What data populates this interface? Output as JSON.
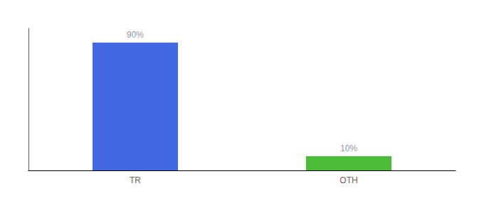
{
  "chart_data": {
    "type": "bar",
    "categories": [
      "TR",
      "OTH"
    ],
    "values": [
      90,
      10
    ],
    "value_labels": [
      "90%",
      "10%"
    ],
    "colors": [
      "#4169E1",
      "#4CBB3A"
    ],
    "data_labels": true,
    "ylim": [
      0,
      100
    ],
    "yticks": [],
    "grid": false,
    "tick_labels": "x"
  }
}
